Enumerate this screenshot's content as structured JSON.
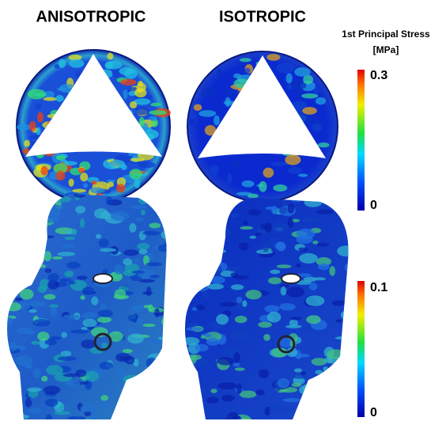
{
  "panels": [
    {
      "title": "ANISOTROPIC"
    },
    {
      "title": "ISOTROPIC"
    }
  ],
  "legend": {
    "title": "1st Principal Stress",
    "unit": "[MPa]"
  },
  "colorbars": [
    {
      "max": 0.3,
      "min": 0
    },
    {
      "max": 0.1,
      "min": 0
    }
  ]
}
